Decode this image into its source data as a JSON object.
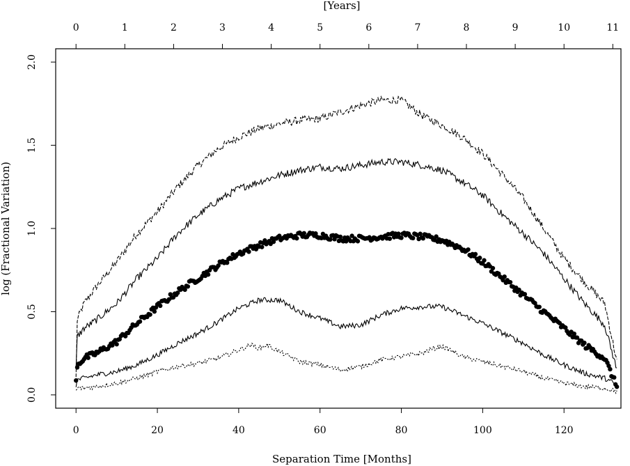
{
  "chart_data": {
    "type": "line",
    "xlabel": "Separation Time [Months]",
    "ylabel": "log (Fractional Variation)",
    "top_axis_label": "[Years]",
    "xlim": [
      -5,
      134
    ],
    "ylim": [
      -0.08,
      2.08
    ],
    "x_ticks": [
      "0",
      "20",
      "40",
      "60",
      "80",
      "100",
      "120"
    ],
    "x_tick_values": [
      0,
      20,
      40,
      60,
      80,
      100,
      120
    ],
    "y_ticks": [
      "0.0",
      "0.5",
      "1.0",
      "1.5",
      "2.0"
    ],
    "y_tick_values": [
      0.0,
      0.5,
      1.0,
      1.5,
      2.0
    ],
    "top_ticks": [
      "0",
      "1",
      "2",
      "3",
      "4",
      "5",
      "6",
      "7",
      "8",
      "9",
      "10",
      "11"
    ],
    "top_tick_values": [
      0,
      12,
      24,
      36,
      48,
      60,
      72,
      84,
      96,
      108,
      120,
      132
    ],
    "grid": false,
    "series": [
      {
        "style": "dashed",
        "x": [
          0,
          0.3,
          2,
          5,
          10,
          15,
          20,
          25,
          30,
          35,
          40,
          45,
          50,
          55,
          60,
          65,
          70,
          75,
          80,
          85,
          90,
          95,
          100,
          105,
          110,
          115,
          120,
          125,
          130,
          133
        ],
        "values": [
          0.1,
          0.45,
          0.55,
          0.65,
          0.8,
          0.97,
          1.1,
          1.25,
          1.38,
          1.48,
          1.55,
          1.6,
          1.63,
          1.65,
          1.66,
          1.7,
          1.74,
          1.77,
          1.77,
          1.68,
          1.62,
          1.55,
          1.45,
          1.32,
          1.18,
          1.0,
          0.82,
          0.68,
          0.55,
          0.2
        ]
      },
      {
        "style": "solid",
        "x": [
          0,
          0.3,
          2,
          5,
          10,
          15,
          20,
          25,
          30,
          35,
          40,
          45,
          50,
          55,
          60,
          65,
          70,
          75,
          80,
          85,
          90,
          95,
          100,
          105,
          110,
          115,
          120,
          125,
          130,
          133
        ],
        "values": [
          0.15,
          0.35,
          0.4,
          0.45,
          0.55,
          0.7,
          0.82,
          0.97,
          1.08,
          1.17,
          1.24,
          1.28,
          1.32,
          1.35,
          1.37,
          1.36,
          1.38,
          1.4,
          1.4,
          1.38,
          1.35,
          1.28,
          1.2,
          1.08,
          0.97,
          0.85,
          0.7,
          0.55,
          0.42,
          0.15
        ]
      },
      {
        "style": "points",
        "x": [
          0,
          0.3,
          2,
          5,
          10,
          15,
          20,
          25,
          30,
          35,
          40,
          45,
          50,
          55,
          60,
          65,
          70,
          75,
          80,
          85,
          90,
          95,
          100,
          105,
          110,
          115,
          120,
          125,
          130,
          133
        ],
        "values": [
          0.08,
          0.18,
          0.22,
          0.25,
          0.32,
          0.43,
          0.53,
          0.62,
          0.7,
          0.78,
          0.85,
          0.9,
          0.94,
          0.96,
          0.96,
          0.94,
          0.94,
          0.95,
          0.96,
          0.95,
          0.93,
          0.88,
          0.8,
          0.7,
          0.6,
          0.5,
          0.4,
          0.3,
          0.22,
          0.05
        ]
      },
      {
        "style": "solid",
        "x": [
          0,
          0.3,
          2,
          5,
          10,
          15,
          20,
          25,
          30,
          35,
          40,
          45,
          50,
          55,
          60,
          65,
          70,
          75,
          80,
          85,
          90,
          95,
          100,
          105,
          110,
          115,
          120,
          125,
          130,
          133
        ],
        "values": [
          0.06,
          0.09,
          0.1,
          0.12,
          0.14,
          0.18,
          0.24,
          0.31,
          0.37,
          0.44,
          0.52,
          0.57,
          0.57,
          0.5,
          0.46,
          0.41,
          0.42,
          0.48,
          0.52,
          0.53,
          0.53,
          0.48,
          0.43,
          0.37,
          0.31,
          0.24,
          0.18,
          0.13,
          0.1,
          0.06
        ]
      },
      {
        "style": "dotted",
        "x": [
          0,
          0.3,
          2,
          5,
          10,
          15,
          20,
          25,
          30,
          35,
          40,
          43,
          45,
          47,
          50,
          55,
          60,
          65,
          70,
          75,
          80,
          85,
          88,
          90,
          92,
          95,
          100,
          105,
          110,
          115,
          120,
          125,
          130,
          133
        ],
        "values": [
          0.02,
          0.04,
          0.04,
          0.05,
          0.07,
          0.1,
          0.14,
          0.17,
          0.19,
          0.22,
          0.27,
          0.3,
          0.28,
          0.3,
          0.26,
          0.2,
          0.18,
          0.15,
          0.17,
          0.21,
          0.23,
          0.25,
          0.28,
          0.29,
          0.27,
          0.23,
          0.2,
          0.17,
          0.14,
          0.1,
          0.07,
          0.05,
          0.04,
          0.02
        ]
      }
    ]
  }
}
